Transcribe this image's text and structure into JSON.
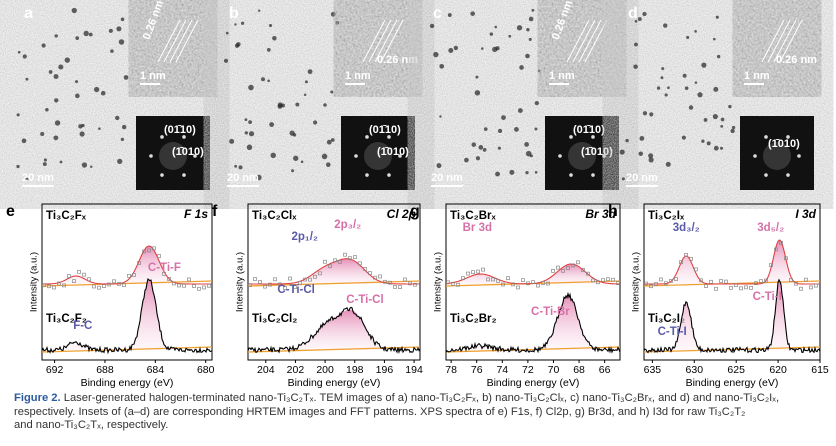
{
  "tem_panels": [
    {
      "letter": "a",
      "spacing": "0.26 nm",
      "hrtem_scale": "1 nm",
      "fft_labels": [
        "(01̄10)",
        "(1̄010)"
      ],
      "scale_bar": "20 nm"
    },
    {
      "letter": "b",
      "spacing": "0.26 nm",
      "hrtem_scale": "1 nm",
      "fft_labels": [
        "(01̄10)",
        "(1̄010)"
      ],
      "scale_bar": "20 nm"
    },
    {
      "letter": "c",
      "spacing": "0.26 nm",
      "hrtem_scale": "1 nm",
      "fft_labels": [
        "(01̄10)",
        "(1̄010)"
      ],
      "scale_bar": "20 nm"
    },
    {
      "letter": "d",
      "spacing": "0.26 nm",
      "hrtem_scale": "1 nm",
      "fft_labels": [
        "(1̄010)"
      ],
      "scale_bar": "20 nm"
    }
  ],
  "xps_panels": [
    {
      "letter": "e",
      "title": "F 1s",
      "top_label": "Ti₃C₂Fₓ",
      "bottom_label": "Ti₃C₂F₂",
      "peak_labels": [
        "C-Ti-F",
        "F-C"
      ],
      "xlim": [
        693,
        679.5
      ],
      "xticks": [
        692,
        688,
        684,
        680
      ],
      "xlabel": "Binding energy (eV)",
      "ylabel": "Intensity (a.u.)"
    },
    {
      "letter": "f",
      "title": "Cl 2p",
      "top_label": "Ti₃C₂Clₓ",
      "bottom_label": "Ti₃C₂Cl₂",
      "peak_labels": [
        "2p₁/₂",
        "2p₃/₂",
        "C-Ti-Cl",
        "C-Ti-Cl"
      ],
      "xlim": [
        205.2,
        193.6
      ],
      "xticks": [
        204,
        202,
        200,
        198,
        196,
        194
      ],
      "xlabel": "Binding energy (eV)",
      "ylabel": "Intensity (a.u.)"
    },
    {
      "letter": "g",
      "title": "Br 3d",
      "top_label": "Ti₃C₂Brₓ",
      "bottom_label": "Ti₃C₂Br₂",
      "peak_labels": [
        "Br 3d",
        "C-Ti-Br"
      ],
      "xlim": [
        78.4,
        64.8
      ],
      "xticks": [
        78,
        76,
        74,
        72,
        70,
        68,
        66
      ],
      "xlabel": "Binding energy (eV)",
      "ylabel": "Intensity (a.u.)"
    },
    {
      "letter": "h",
      "title": "I 3d",
      "top_label": "Ti₃C₂Iₓ",
      "bottom_label": "Ti₃C₂I₂",
      "peak_labels": [
        "3d₃/₂",
        "3d₅/₂",
        "C-Ti-I",
        "C-Ti-I"
      ],
      "xlim": [
        636,
        615
      ],
      "xticks": [
        635,
        630,
        625,
        620,
        615
      ],
      "xlabel": "Binding energy (eV)",
      "ylabel": "Intensity (a.u.)"
    }
  ],
  "caption": {
    "label": "Figure 2.",
    "lines": [
      "Laser-generated halogen-terminated nano-Ti₃C₂Tₓ. TEM images of a) nano-Ti₃C₂Fₓ, b) nano-Ti₃C₂Clₓ, c) nano-Ti₃C₂Brₓ, and d) and nano-Ti₃C₂Iₓ,",
      "respectively. Insets of (a–d) are corresponding HRTEM images and FFT patterns. XPS spectra of e) F1s, f) Cl2p, g) Br3d, and h) I3d for raw Ti₃C₂T₂",
      "and nano-Ti₃C₂Tₓ, respectively."
    ]
  }
}
